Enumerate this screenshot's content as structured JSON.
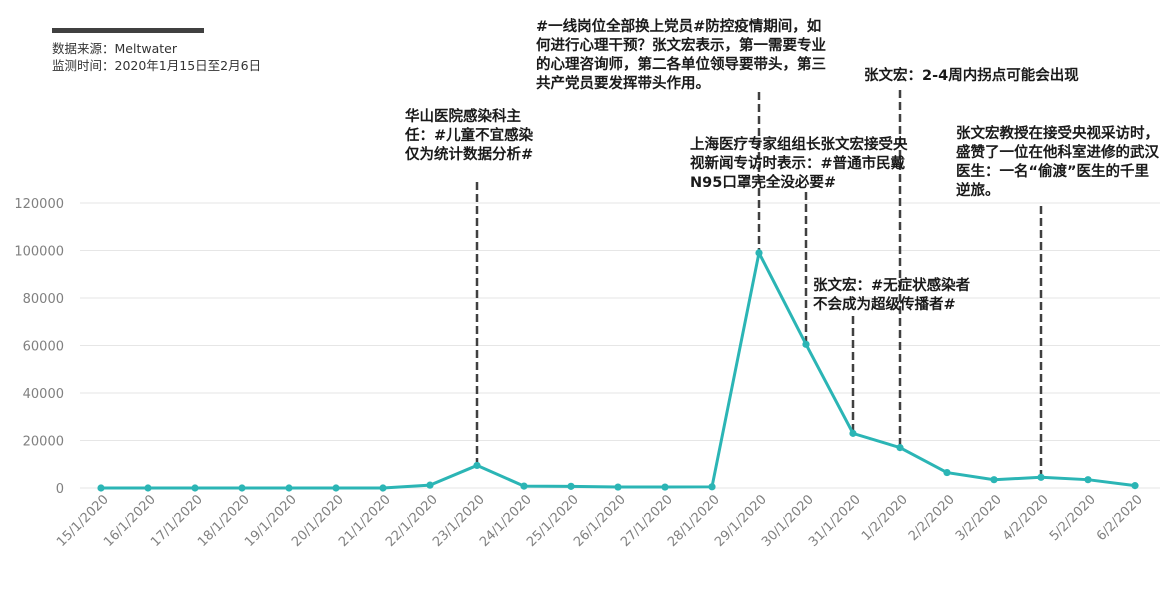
{
  "source": {
    "line1": "数据来源：Meltwater",
    "line2": "监测时间：2020年1月15日至2月6日"
  },
  "colors": {
    "series": "#2bb5b5",
    "marker_line": "#404040",
    "grid": "#e6e6e6",
    "tick": "#808080"
  },
  "chart_data": {
    "type": "line",
    "title": "",
    "xlabel": "",
    "ylabel": "",
    "ylim": [
      0,
      120000
    ],
    "yticks": [
      0,
      20000,
      40000,
      60000,
      80000,
      100000,
      120000
    ],
    "grid": true,
    "legend": "none",
    "x": [
      "15/1/2020",
      "16/1/2020",
      "17/1/2020",
      "18/1/2020",
      "19/1/2020",
      "20/1/2020",
      "21/1/2020",
      "22/1/2020",
      "23/1/2020",
      "24/1/2020",
      "25/1/2020",
      "26/1/2020",
      "27/1/2020",
      "28/1/2020",
      "29/1/2020",
      "30/1/2020",
      "31/1/2020",
      "1/2/2020",
      "2/2/2020",
      "3/2/2020",
      "4/2/2020",
      "5/2/2020",
      "6/2/2020"
    ],
    "series": [
      {
        "values": [
          0,
          0,
          0,
          0,
          0,
          0,
          0,
          1200,
          9500,
          800,
          700,
          400,
          400,
          500,
          99000,
          60500,
          23000,
          17000,
          6500,
          3500,
          4500,
          3500,
          1000
        ]
      }
    ],
    "annotations": [
      {
        "x": "23/1/2020",
        "text": "华山医院感染科主任：#儿童不宜感染仅为统计数据分析#"
      },
      {
        "x": "29/1/2020",
        "text": "#一线岗位全部换上党员#防控疫情期间，如何进行心理干预？张文宏表示，第一需要专业的心理咨询师，第二各单位领导要带头，第三共产党员要发挥带头作用。"
      },
      {
        "x": "30/1/2020",
        "text": "上海医疗专家组组长张文宏接受央视新闻专访时表示：#普通市民戴N95口罩完全没必要#"
      },
      {
        "x": "31/1/2020",
        "text": "张文宏：#无症状感染者不会成为超级传播者#"
      },
      {
        "x": "1/2/2020",
        "text": "张文宏：2-4周内拐点可能会出现"
      },
      {
        "x": "4/2/2020",
        "text": "张文宏教授在接受央视采访时，盛赞了一位在他科室进修的武汉医生：一名“偷渡”医生的千里逆旅。"
      }
    ]
  }
}
